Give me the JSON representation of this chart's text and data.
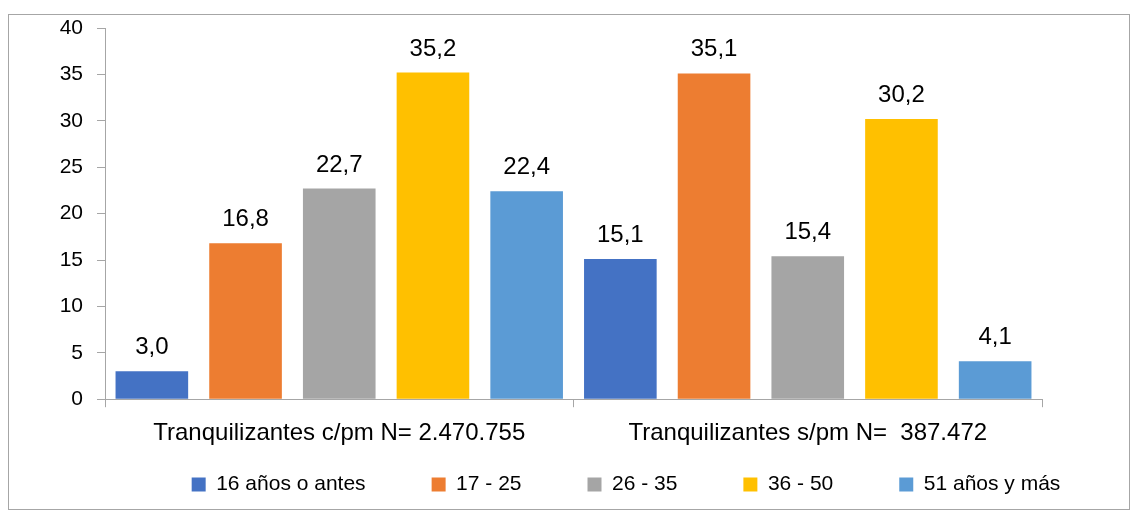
{
  "chart_data": {
    "type": "bar",
    "categories": [
      "Tranquilizantes c/pm N= 2.470.755",
      "Tranquilizantes s/pm N=  387.472"
    ],
    "series": [
      {
        "name": "16 años o antes",
        "color": "#4472c4",
        "values": [
          3.0,
          15.1
        ],
        "value_labels": [
          "3,0",
          "15,1"
        ]
      },
      {
        "name": "17 - 25",
        "color": "#ed7d31",
        "values": [
          16.8,
          35.1
        ],
        "value_labels": [
          "16,8",
          "35,1"
        ]
      },
      {
        "name": "26 - 35",
        "color": "#a5a5a5",
        "values": [
          22.7,
          15.4
        ],
        "value_labels": [
          "22,7",
          "15,4"
        ]
      },
      {
        "name": "36 - 50",
        "color": "#ffc000",
        "values": [
          35.2,
          30.2
        ],
        "value_labels": [
          "35,2",
          "30,2"
        ]
      },
      {
        "name": "51 años y más",
        "color": "#5b9bd5",
        "values": [
          22.4,
          4.1
        ],
        "value_labels": [
          "22,4",
          "4,1"
        ]
      }
    ],
    "ylim": [
      0,
      40
    ],
    "yticks": [
      0,
      5,
      10,
      15,
      20,
      25,
      30,
      35,
      40
    ],
    "grid": false,
    "legend": "bottom"
  }
}
